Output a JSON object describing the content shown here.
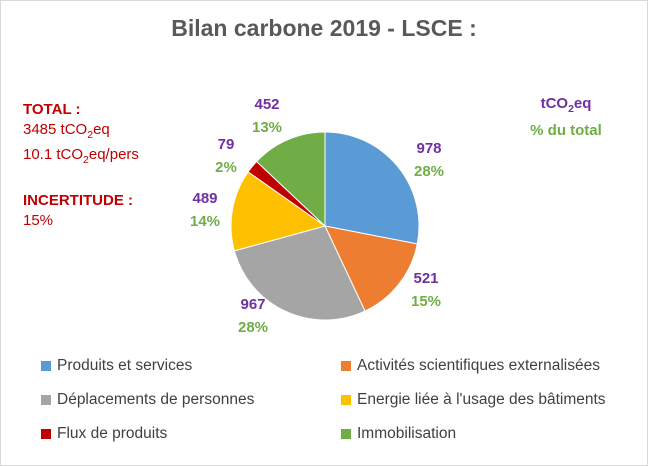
{
  "chart_data": {
    "type": "pie",
    "title": "Bilan carbone 2019 - LSCE :",
    "unit_label": "tCO2eq",
    "pct_label": "% du total",
    "categories": [
      "Produits et services",
      "Activités scientifiques externalisées",
      "Déplacements de personnes",
      "Energie liée à l'usage des bâtiments",
      "Flux de produits",
      "Immobilisation"
    ],
    "values": [
      978,
      521,
      967,
      489,
      79,
      452
    ],
    "percents": [
      "28%",
      "15%",
      "28%",
      "14%",
      "2%",
      "13%"
    ],
    "colors": [
      "#5b9bd5",
      "#ed7d31",
      "#a5a5a5",
      "#ffc000",
      "#c00000",
      "#70ad47"
    ],
    "legend_position": "bottom"
  },
  "notes": {
    "total_label": "TOTAL :",
    "total_value": "3485 tCO2eq",
    "per_person": "10.1 tCO2eq/pers",
    "uncertainty_label": "INCERTITUDE :",
    "uncertainty_value": "15%"
  }
}
